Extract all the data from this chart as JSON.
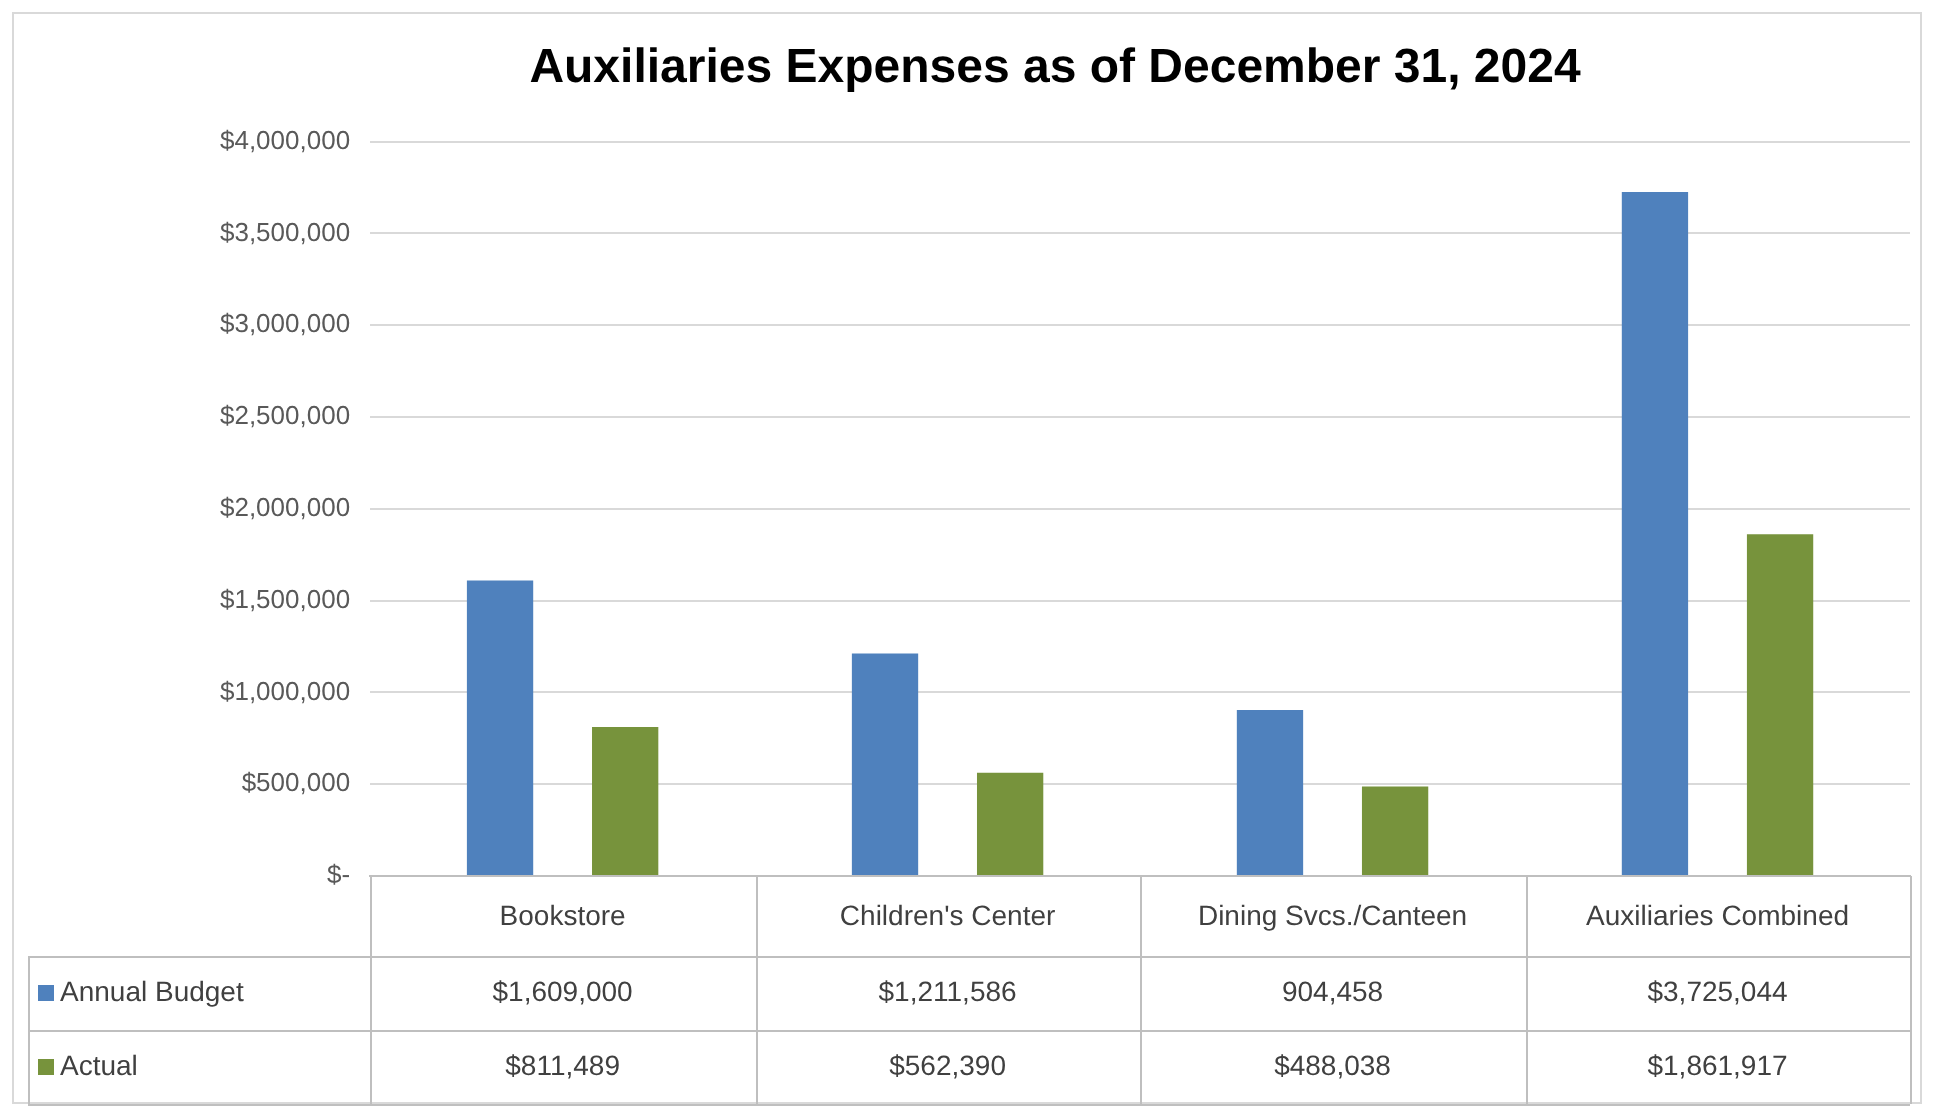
{
  "chart_data": {
    "type": "bar",
    "title": "Auxiliaries Expenses as of December 31, 2024",
    "categories": [
      "Bookstore",
      "Children's Center",
      "Dining Svcs./Canteen",
      "Auxiliaries Combined"
    ],
    "series": [
      {
        "name": "Annual Budget",
        "color": "#4f81bd",
        "values": [
          1609000,
          1211586,
          904458,
          3725044
        ],
        "value_labels": [
          "$1,609,000",
          "$1,211,586",
          "904,458",
          "$3,725,044"
        ]
      },
      {
        "name": "Actual",
        "color": "#77933c",
        "values": [
          811489,
          562390,
          488038,
          1861917
        ],
        "value_labels": [
          "$811,489",
          "$562,390",
          "$488,038",
          "$1,861,917"
        ]
      }
    ],
    "ylim": [
      0,
      4000000
    ],
    "yticks": [
      {
        "value": 0,
        "label": "$-"
      },
      {
        "value": 500000,
        "label": "$500,000"
      },
      {
        "value": 1000000,
        "label": "$1,000,000"
      },
      {
        "value": 1500000,
        "label": "$1,500,000"
      },
      {
        "value": 2000000,
        "label": "$2,000,000"
      },
      {
        "value": 2500000,
        "label": "$2,500,000"
      },
      {
        "value": 3000000,
        "label": "$3,000,000"
      },
      {
        "value": 3500000,
        "label": "$3,500,000"
      },
      {
        "value": 4000000,
        "label": "$4,000,000"
      }
    ],
    "grid": "y",
    "legend": "bottom left"
  }
}
